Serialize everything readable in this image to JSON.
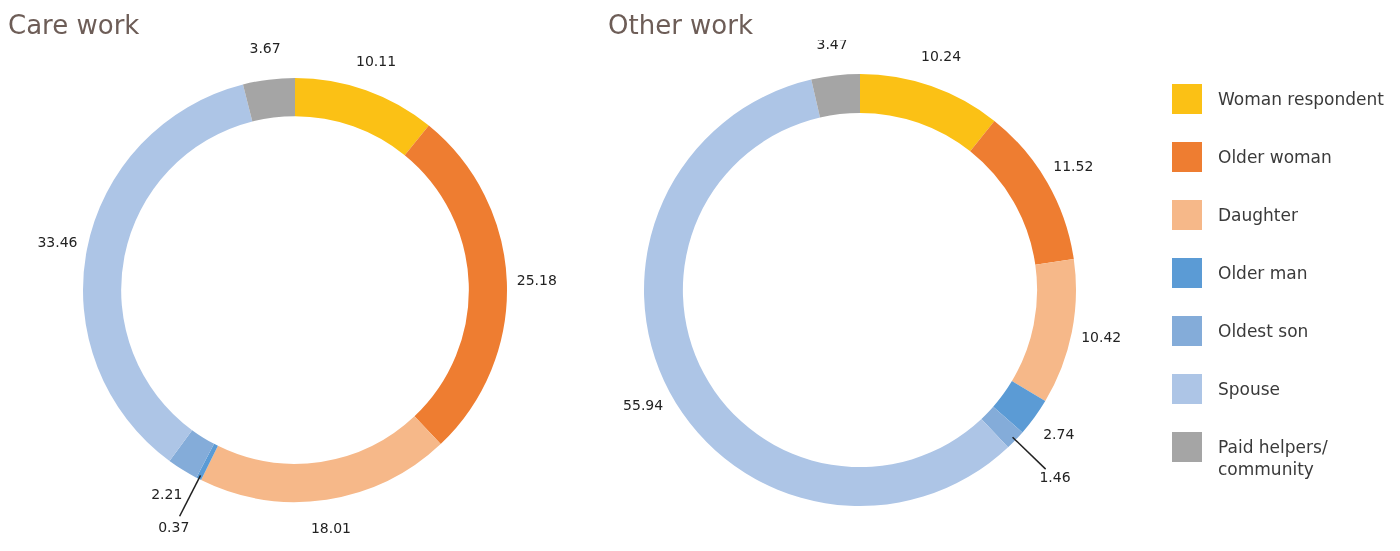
{
  "chart_data": {
    "type": "donut",
    "categories": [
      "Woman respondent",
      "Older woman",
      "Daughter",
      "Older man",
      "Oldest son",
      "Spouse",
      "Paid helpers/ community"
    ],
    "colors": [
      "#fbc115",
      "#ee7d31",
      "#f6b889",
      "#5b9bd5",
      "#84acd9",
      "#adc5e6",
      "#a5a5a5"
    ],
    "data_labels": true,
    "legend": "right",
    "series": [
      {
        "name": "Care work",
        "values": [
          10.11,
          25.18,
          18.01,
          0.37,
          2.21,
          33.46,
          3.67
        ]
      },
      {
        "name": "Other work",
        "values": [
          10.24,
          11.52,
          10.42,
          2.74,
          1.46,
          55.94,
          3.47
        ]
      }
    ]
  }
}
